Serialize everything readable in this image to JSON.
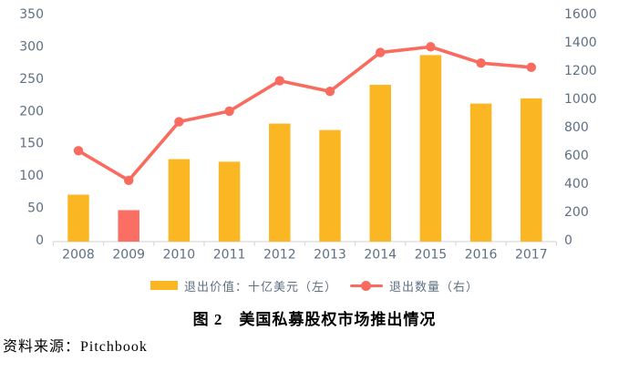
{
  "figure": {
    "caption": "图 2　美国私募股权市场推出情况",
    "source": "资料来源：Pitchbook"
  },
  "chart_data": {
    "type": "bar+line",
    "categories": [
      "2008",
      "2009",
      "2010",
      "2011",
      "2012",
      "2013",
      "2014",
      "2015",
      "2016",
      "2017"
    ],
    "series": [
      {
        "name": "退出价值：十亿美元（左）",
        "type": "bar",
        "axis": "left",
        "values": [
          72,
          48,
          127,
          123,
          182,
          172,
          242,
          288,
          213,
          221
        ],
        "color": "#FBB723",
        "highlight_index": 1,
        "highlight_color": "#FA6E64"
      },
      {
        "name": "退出数量（右）",
        "type": "line",
        "axis": "right",
        "values": [
          640,
          430,
          845,
          920,
          1135,
          1060,
          1335,
          1375,
          1260,
          1230
        ],
        "color": "#F96B5F"
      }
    ],
    "left_axis": {
      "min": 0,
      "max": 350,
      "step": 50,
      "ticks": [
        350,
        300,
        250,
        200,
        150,
        100,
        50,
        0
      ]
    },
    "right_axis": {
      "min": 0,
      "max": 1600,
      "step": 200,
      "ticks": [
        1600,
        1400,
        1200,
        1000,
        800,
        600,
        400,
        200,
        0
      ]
    },
    "legend_position": "bottom",
    "grid": false,
    "colors": {
      "axis_text": "#5E7083",
      "axis_line": "#D9D9D9"
    }
  }
}
